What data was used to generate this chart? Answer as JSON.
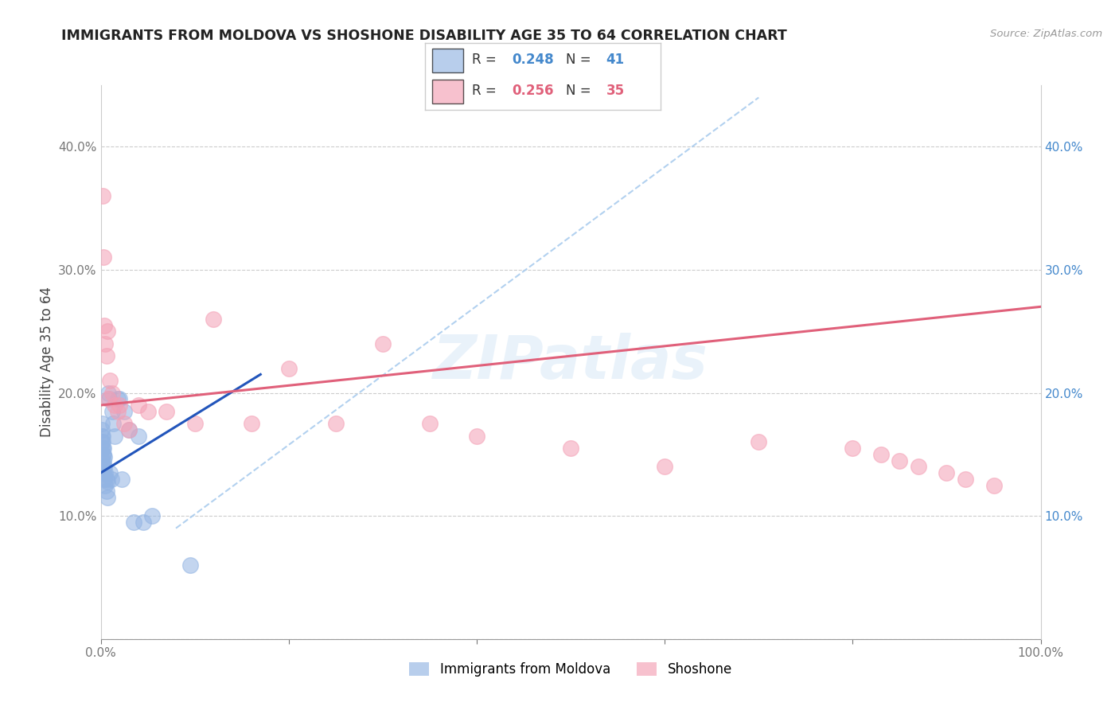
{
  "title": "IMMIGRANTS FROM MOLDOVA VS SHOSHONE DISABILITY AGE 35 TO 64 CORRELATION CHART",
  "source": "Source: ZipAtlas.com",
  "ylabel": "Disability Age 35 to 64",
  "xlim": [
    0,
    1.0
  ],
  "ylim": [
    0,
    0.45
  ],
  "xticks": [
    0.0,
    0.2,
    0.4,
    0.6,
    0.8,
    1.0
  ],
  "xticklabels": [
    "0.0%",
    "",
    "",
    "",
    "",
    "100.0%"
  ],
  "yticks": [
    0.0,
    0.1,
    0.2,
    0.3,
    0.4
  ],
  "yticklabels_left": [
    "",
    "10.0%",
    "20.0%",
    "30.0%",
    "40.0%"
  ],
  "yticklabels_right": [
    "",
    "10.0%",
    "20.0%",
    "30.0%",
    "40.0%"
  ],
  "r_moldova": 0.248,
  "n_moldova": 41,
  "r_shoshone": 0.256,
  "n_shoshone": 35,
  "color_moldova": "#92b4e3",
  "color_shoshone": "#f4a0b5",
  "trendline_moldova_color": "#2255bb",
  "trendline_shoshone_color": "#e0607a",
  "dashed_line_color": "#aaccee",
  "watermark": "ZIPatlas",
  "moldova_x": [
    0.001,
    0.001,
    0.001,
    0.001,
    0.001,
    0.001,
    0.002,
    0.002,
    0.002,
    0.002,
    0.002,
    0.003,
    0.003,
    0.003,
    0.003,
    0.004,
    0.004,
    0.004,
    0.005,
    0.005,
    0.006,
    0.006,
    0.007,
    0.007,
    0.008,
    0.009,
    0.01,
    0.011,
    0.012,
    0.013,
    0.015,
    0.018,
    0.02,
    0.022,
    0.025,
    0.03,
    0.035,
    0.04,
    0.045,
    0.055,
    0.095
  ],
  "moldova_y": [
    0.145,
    0.155,
    0.16,
    0.165,
    0.17,
    0.175,
    0.14,
    0.15,
    0.155,
    0.16,
    0.165,
    0.135,
    0.145,
    0.15,
    0.155,
    0.13,
    0.14,
    0.148,
    0.125,
    0.135,
    0.12,
    0.13,
    0.115,
    0.128,
    0.2,
    0.195,
    0.135,
    0.13,
    0.185,
    0.175,
    0.165,
    0.195,
    0.195,
    0.13,
    0.185,
    0.17,
    0.095,
    0.165,
    0.095,
    0.1,
    0.06
  ],
  "shoshone_x": [
    0.002,
    0.003,
    0.004,
    0.005,
    0.006,
    0.007,
    0.008,
    0.01,
    0.012,
    0.015,
    0.018,
    0.02,
    0.025,
    0.03,
    0.04,
    0.05,
    0.07,
    0.1,
    0.12,
    0.16,
    0.2,
    0.25,
    0.3,
    0.35,
    0.4,
    0.5,
    0.6,
    0.7,
    0.8,
    0.83,
    0.85,
    0.87,
    0.9,
    0.92,
    0.95
  ],
  "shoshone_y": [
    0.36,
    0.31,
    0.255,
    0.24,
    0.23,
    0.25,
    0.195,
    0.21,
    0.2,
    0.19,
    0.185,
    0.19,
    0.175,
    0.17,
    0.19,
    0.185,
    0.185,
    0.175,
    0.26,
    0.175,
    0.22,
    0.175,
    0.24,
    0.175,
    0.165,
    0.155,
    0.14,
    0.16,
    0.155,
    0.15,
    0.145,
    0.14,
    0.135,
    0.13,
    0.125
  ]
}
